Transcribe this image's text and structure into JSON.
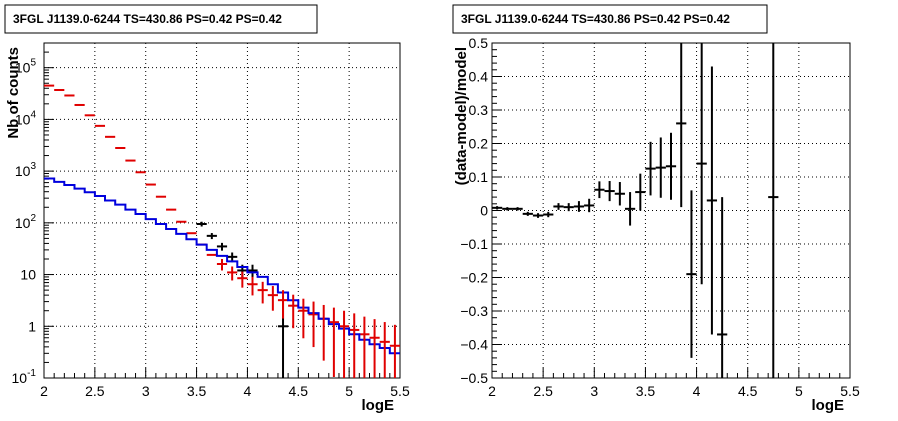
{
  "chart_data": [
    {
      "type": "step-errorbar",
      "title": "3FGL J1139.0-6244 TS=430.86 PS=0.42 PS=0.42",
      "xlabel": "logE",
      "ylabel": "Nb of counts",
      "xlim": [
        2,
        5.5
      ],
      "ylim": [
        0.1,
        300000
      ],
      "log_y": true,
      "grid": true,
      "xticks": [
        "2",
        "2.5",
        "3",
        "3.5",
        "4",
        "4.5",
        "5",
        "5.5"
      ],
      "yticks": [
        {
          "value": 0.1,
          "base": "10",
          "exp": "-1"
        },
        {
          "value": 1,
          "base": "1",
          "exp": ""
        },
        {
          "value": 10,
          "base": "10",
          "exp": ""
        },
        {
          "value": 100,
          "base": "10",
          "exp": "2"
        },
        {
          "value": 1000,
          "base": "10",
          "exp": "3"
        },
        {
          "value": 10000,
          "base": "10",
          "exp": "4"
        },
        {
          "value": 100000,
          "base": "10",
          "exp": "5"
        }
      ],
      "bin_width": 0.1,
      "series": [
        {
          "color": "#e00000",
          "kind": "model-errorbar",
          "x": [
            2.05,
            2.15,
            2.25,
            2.35,
            2.45,
            2.55,
            2.65,
            2.75,
            2.85,
            2.95,
            3.05,
            3.15,
            3.25,
            3.35,
            3.45,
            3.55,
            3.65,
            3.75,
            3.85,
            3.95,
            4.05,
            4.15,
            4.25,
            4.35,
            4.45,
            4.55,
            4.65,
            4.75,
            4.85,
            4.95,
            5.05,
            5.15,
            5.25,
            5.35,
            5.45
          ],
          "y": [
            45000,
            37000,
            29000,
            19000,
            12000,
            7500,
            4600,
            2800,
            1600,
            950,
            550,
            320,
            180,
            105,
            63,
            38,
            24,
            16,
            11,
            8.5,
            6.5,
            5,
            4,
            3.2,
            2.5,
            2,
            1.7,
            1.4,
            1.2,
            1,
            0.85,
            0.7,
            0.6,
            0.5,
            0.42
          ],
          "err_low": [
            0,
            0,
            0,
            0,
            0,
            0,
            0,
            0,
            0,
            0,
            0,
            0,
            0,
            0,
            0,
            0,
            0,
            0,
            0,
            0,
            0,
            0,
            0,
            0,
            0,
            0,
            0,
            0,
            0,
            0,
            0,
            0,
            0,
            0,
            0
          ],
          "err_high": [
            0,
            0,
            0,
            0,
            0,
            0,
            0,
            0,
            0,
            0,
            0,
            0,
            0,
            0,
            0,
            0,
            0,
            0,
            0,
            0,
            0,
            0,
            0,
            0,
            0,
            0,
            0,
            0,
            0,
            0,
            0,
            0,
            0,
            0,
            0
          ]
        },
        {
          "color": "#000000",
          "kind": "data-errorbar",
          "x": [
            3.55,
            3.65,
            3.75,
            3.85,
            3.95,
            4.05,
            4.35
          ],
          "y": [
            95,
            56,
            35,
            22,
            12,
            12,
            1
          ],
          "err_low": [
            10,
            7.5,
            6,
            4.7,
            3.5,
            3.5,
            0.9
          ],
          "err_high": [
            10,
            7.5,
            6,
            4.7,
            3.5,
            3.5,
            2.3
          ]
        },
        {
          "color": "#0000dd",
          "kind": "histogram",
          "edges": [
            2.0,
            2.1,
            2.2,
            2.3,
            2.4,
            2.5,
            2.6,
            2.7,
            2.8,
            2.9,
            3.0,
            3.1,
            3.2,
            3.3,
            3.4,
            3.5,
            3.6,
            3.7,
            3.8,
            3.9,
            4.0,
            4.1,
            4.2,
            4.3,
            4.4,
            4.5,
            4.6,
            4.7,
            4.8,
            4.9,
            5.0,
            5.1,
            5.2,
            5.3,
            5.4,
            5.5
          ],
          "values": [
            720,
            620,
            540,
            460,
            390,
            330,
            270,
            225,
            180,
            148,
            118,
            95,
            76,
            61,
            48,
            38,
            30,
            23,
            18,
            14,
            11,
            9,
            6.5,
            4.5,
            3.2,
            2.3,
            1.8,
            1.4,
            1.1,
            0.9,
            0.7,
            0.55,
            0.45,
            0.38,
            0.3
          ]
        }
      ]
    },
    {
      "type": "errorbar",
      "title": "3FGL J1139.0-6244 TS=430.86 PS=0.42 PS=0.42",
      "xlabel": "logE",
      "ylabel": "(data-model)/model",
      "xlim": [
        2,
        5.5
      ],
      "ylim": [
        -0.5,
        0.5
      ],
      "grid": true,
      "xticks": [
        "2",
        "2.5",
        "3",
        "3.5",
        "4",
        "4.5",
        "5",
        "5.5"
      ],
      "yticks": [
        "−0.5",
        "−0.4",
        "−0.3",
        "−0.2",
        "−0.1",
        "0",
        "0.1",
        "0.2",
        "0.3",
        "0.4",
        "0.5"
      ],
      "bin_width": 0.1,
      "series": [
        {
          "color": "#000000",
          "x": [
            2.05,
            2.15,
            2.25,
            2.35,
            2.45,
            2.55,
            2.65,
            2.75,
            2.85,
            2.95,
            3.05,
            3.15,
            3.25,
            3.35,
            3.45,
            3.55,
            3.65,
            3.75,
            3.85,
            3.95,
            4.05,
            4.15,
            4.25,
            4.75
          ],
          "y": [
            0.008,
            0.005,
            0.005,
            -0.01,
            -0.015,
            -0.012,
            0.012,
            0.01,
            0.012,
            0.015,
            0.062,
            0.058,
            0.05,
            0.005,
            0.055,
            0.125,
            0.128,
            0.132,
            0.26,
            -0.19,
            0.14,
            0.03,
            -0.37,
            0.04
          ],
          "err": [
            0.005,
            0.005,
            0.005,
            0.006,
            0.007,
            0.008,
            0.01,
            0.012,
            0.016,
            0.02,
            0.025,
            0.03,
            0.035,
            0.05,
            0.055,
            0.08,
            0.09,
            0.1,
            0.25,
            0.25,
            0.36,
            0.4,
            0.41,
            0.7
          ]
        }
      ]
    }
  ]
}
